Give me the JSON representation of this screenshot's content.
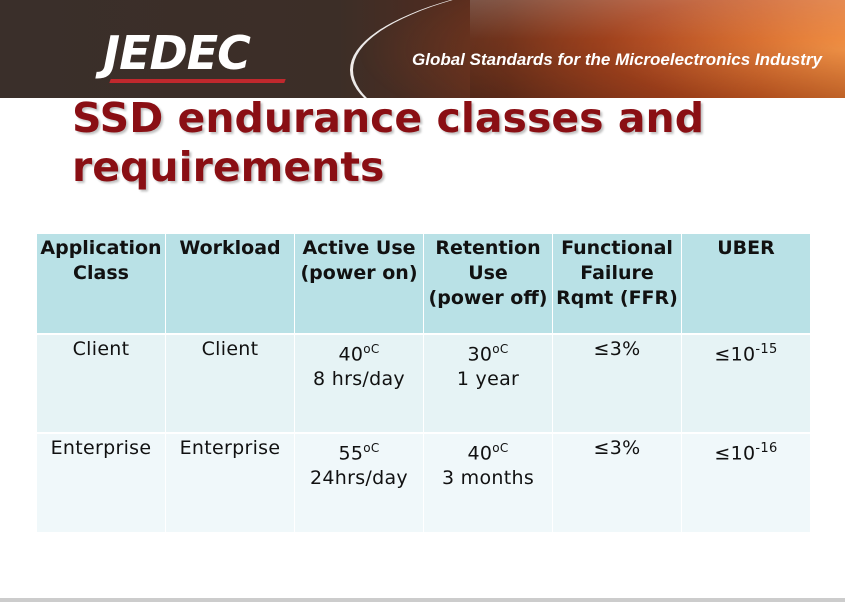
{
  "header": {
    "logo": "JEDEC",
    "tagline": "Global Standards for the Microelectronics Industry"
  },
  "slide": {
    "title_line1": "SSD endurance classes and",
    "title_line2": "requirements"
  },
  "table": {
    "headers": [
      [
        "Application",
        "Class"
      ],
      [
        "Workload"
      ],
      [
        "Active Use",
        "(power on)"
      ],
      [
        "Retention",
        "Use",
        "(power off)"
      ],
      [
        "Functional",
        "Failure",
        "Rqmt (FFR)"
      ],
      [
        "UBER"
      ]
    ],
    "rows": [
      {
        "app_class": "Client",
        "workload": "Client",
        "active_temp": "40",
        "active_temp_unit": "oC",
        "active_time": "8 hrs/day",
        "retention_temp": "30",
        "retention_temp_unit": "oC",
        "retention_time": "1 year",
        "ffr": "≤3%",
        "uber_base": "≤10",
        "uber_exp": "-15"
      },
      {
        "app_class": "Enterprise",
        "workload": "Enterprise",
        "active_temp": "55",
        "active_temp_unit": "oC",
        "active_time": "24hrs/day",
        "retention_temp": "40",
        "retention_temp_unit": "oC",
        "retention_time": "3 months",
        "ffr": "≤3%",
        "uber_base": "≤10",
        "uber_exp": "-16"
      }
    ]
  }
}
